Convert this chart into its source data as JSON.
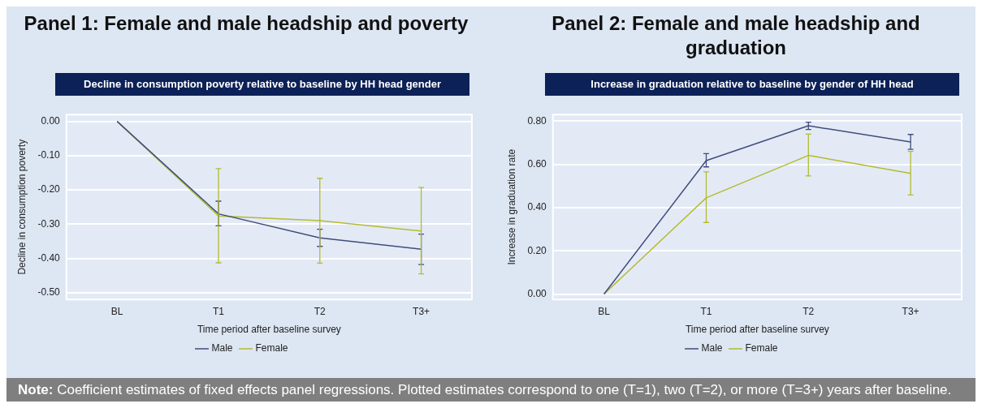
{
  "chart_data": [
    {
      "type": "line",
      "title": "Panel 1: Female and male headship and poverty",
      "subtitle": "Decline in consumption poverty relative to baseline by HH head gender",
      "xlabel": "Time period after baseline survey",
      "ylabel": "Decline in consumption poverty",
      "categories": [
        "BL",
        "T1",
        "T2",
        "T3+"
      ],
      "series": [
        {
          "name": "Male",
          "color": "#3f4d7c",
          "values": [
            0,
            -0.27,
            -0.34,
            -0.373
          ],
          "errors": [
            null,
            [
              -0.305,
              -0.233
            ],
            [
              -0.365,
              -0.315
            ],
            [
              -0.418,
              -0.329
            ]
          ]
        },
        {
          "name": "Female",
          "color": "#b4bb2f",
          "values": [
            0,
            -0.276,
            -0.29,
            -0.32
          ],
          "errors": [
            null,
            [
              -0.413,
              -0.138
            ],
            [
              -0.414,
              -0.166
            ],
            [
              -0.445,
              -0.193
            ]
          ]
        }
      ],
      "ylim": [
        -0.52,
        0.02
      ],
      "yticks": [
        {
          "value": 0,
          "label": "0.00"
        },
        {
          "value": -0.1,
          "label": "-0.10"
        },
        {
          "value": -0.2,
          "label": "-0.20"
        },
        {
          "value": -0.3,
          "label": "-0.30"
        },
        {
          "value": -0.4,
          "label": "-0.40"
        },
        {
          "value": -0.5,
          "label": "-0.50"
        }
      ],
      "grid": "y",
      "legend": "bottom",
      "marker": "none",
      "line_style": "solid",
      "annotations": [
        "Note: Coefficient estimates of fixed effects panel regressions. Plotted estimates correspond to one (T=1), two (T=2), or more (T=3+) years after baseline."
      ]
    },
    {
      "type": "line",
      "title": "Panel 2: Female and male headship and graduation",
      "subtitle": "Increase in graduation relative to baseline by gender of HH head",
      "xlabel": "Time period after baseline survey",
      "ylabel": "Increase in graduation rate",
      "categories": [
        "BL",
        "T1",
        "T2",
        "T3+"
      ],
      "series": [
        {
          "name": "Male",
          "color": "#3f4d7c",
          "values": [
            0,
            0.617,
            0.778,
            0.703
          ],
          "errors": [
            null,
            [
              0.588,
              0.649
            ],
            [
              0.761,
              0.795
            ],
            [
              0.669,
              0.738
            ]
          ]
        },
        {
          "name": "Female",
          "color": "#b4bb2f",
          "values": [
            0,
            0.445,
            0.641,
            0.558
          ],
          "errors": [
            null,
            [
              0.331,
              0.565
            ],
            [
              0.546,
              0.739
            ],
            [
              0.458,
              0.66
            ]
          ]
        }
      ],
      "ylim": [
        -0.025,
        0.83
      ],
      "yticks": [
        {
          "value": 0,
          "label": "0.00"
        },
        {
          "value": 0.2,
          "label": "0.20"
        },
        {
          "value": 0.4,
          "label": "0.40"
        },
        {
          "value": 0.6,
          "label": "0.60"
        },
        {
          "value": 0.8,
          "label": "0.80"
        }
      ],
      "grid": "y",
      "legend": "bottom",
      "marker": "none",
      "line_style": "solid"
    }
  ]
}
